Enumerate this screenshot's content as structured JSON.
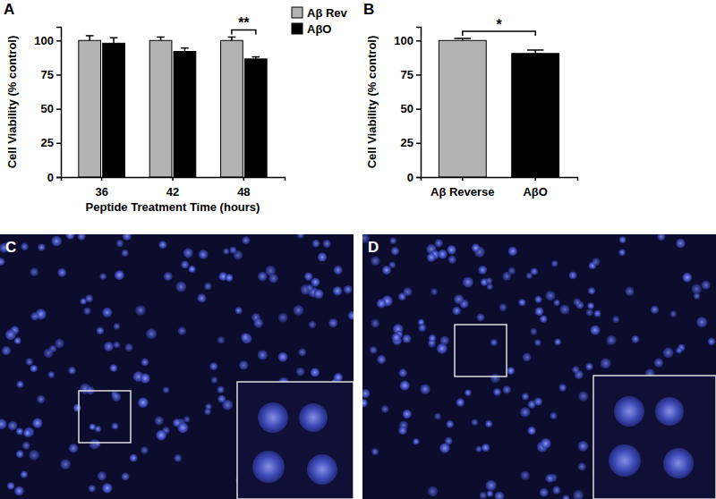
{
  "chart_data": [
    {
      "type": "bar",
      "title": "A",
      "x_label": "Peptide Treatment Time (hours)",
      "y_label": "Cell Viability (% control)",
      "categories": [
        "36",
        "42",
        "48"
      ],
      "series": [
        {
          "name": "Aβ Rev",
          "color": "#b3b3b3",
          "values": [
            100,
            100,
            100
          ],
          "errors": [
            3.5,
            2.5,
            2.5
          ]
        },
        {
          "name": "AβO",
          "color": "#000000",
          "values": [
            98,
            92,
            86.5
          ],
          "errors": [
            4,
            2.5,
            1.5
          ]
        }
      ],
      "ylim": [
        0,
        110
      ],
      "yticks": [
        0,
        25,
        50,
        75,
        100
      ],
      "legend": "right",
      "annotations": [
        {
          "text": "**",
          "category": "48"
        }
      ]
    },
    {
      "type": "bar",
      "title": "B",
      "y_label": "Cell Viability (% control)",
      "categories": [
        "Aβ Reverse",
        "AβO"
      ],
      "values": [
        100,
        90.5
      ],
      "errors": [
        1.5,
        2.5
      ],
      "colors": [
        "#b3b3b3",
        "#000000"
      ],
      "ylim": [
        0,
        110
      ],
      "yticks": [
        0,
        25,
        50,
        75,
        100
      ],
      "annotations": [
        {
          "text": "*",
          "categories": [
            "Aβ Reverse",
            "AβO"
          ]
        }
      ]
    }
  ],
  "images": [
    {
      "label": "C"
    },
    {
      "label": "D"
    }
  ]
}
